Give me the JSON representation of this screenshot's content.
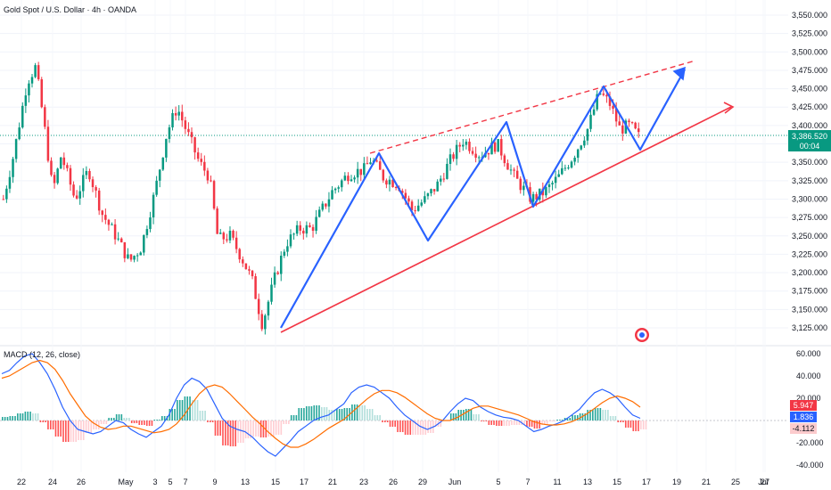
{
  "chart_data": [
    {
      "type": "candlestick",
      "title": "Gold Spot / U.S. Dollar · 4h · OANDA",
      "price_axis_ticks": [
        "3,550.000",
        "3,525.000",
        "3,500.000",
        "3,475.000",
        "3,450.000",
        "3,425.000",
        "3,400.000",
        "3,375.000",
        "3,350.000",
        "3,325.000",
        "3,300.000",
        "3,275.000",
        "3,250.000",
        "3,225.000",
        "3,200.000",
        "3,175.000",
        "3,150.000",
        "3,125.000"
      ],
      "ylim": [
        3120,
        3560
      ],
      "last_price": "3,386.520",
      "countdown": "00:04",
      "close_path": [
        {
          "x": 0,
          "y": 3300
        },
        {
          "x": 0.6,
          "y": 3360
        },
        {
          "x": 1.4,
          "y": 3460
        },
        {
          "x": 1.9,
          "y": 3480
        },
        {
          "x": 2.4,
          "y": 3400
        },
        {
          "x": 2.9,
          "y": 3310
        },
        {
          "x": 3.4,
          "y": 3360
        },
        {
          "x": 4.2,
          "y": 3300
        },
        {
          "x": 5.0,
          "y": 3340
        },
        {
          "x": 5.8,
          "y": 3280
        },
        {
          "x": 6.6,
          "y": 3250
        },
        {
          "x": 7.4,
          "y": 3215
        },
        {
          "x": 8.1,
          "y": 3235
        },
        {
          "x": 8.9,
          "y": 3310
        },
        {
          "x": 9.6,
          "y": 3390
        },
        {
          "x": 10.2,
          "y": 3425
        },
        {
          "x": 10.8,
          "y": 3390
        },
        {
          "x": 11.5,
          "y": 3350
        },
        {
          "x": 12.1,
          "y": 3330
        },
        {
          "x": 12.6,
          "y": 3245
        },
        {
          "x": 13.3,
          "y": 3250
        },
        {
          "x": 14.0,
          "y": 3220
        },
        {
          "x": 14.6,
          "y": 3190
        },
        {
          "x": 15.2,
          "y": 3130
        },
        {
          "x": 15.9,
          "y": 3190
        },
        {
          "x": 16.6,
          "y": 3240
        },
        {
          "x": 17.4,
          "y": 3260
        },
        {
          "x": 18.1,
          "y": 3260
        },
        {
          "x": 19.3,
          "y": 3310
        },
        {
          "x": 20.3,
          "y": 3335
        },
        {
          "x": 21.2,
          "y": 3340
        },
        {
          "x": 21.6,
          "y": 3355
        },
        {
          "x": 22.3,
          "y": 3330
        },
        {
          "x": 23.2,
          "y": 3320
        },
        {
          "x": 24.0,
          "y": 3285
        },
        {
          "x": 24.8,
          "y": 3300
        },
        {
          "x": 25.5,
          "y": 3320
        },
        {
          "x": 26.3,
          "y": 3355
        },
        {
          "x": 27.0,
          "y": 3380
        },
        {
          "x": 28.0,
          "y": 3360
        },
        {
          "x": 29.0,
          "y": 3375
        },
        {
          "x": 30.0,
          "y": 3330
        },
        {
          "x": 31.0,
          "y": 3300
        },
        {
          "x": 31.8,
          "y": 3310
        },
        {
          "x": 32.6,
          "y": 3330
        },
        {
          "x": 33.5,
          "y": 3360
        },
        {
          "x": 34.3,
          "y": 3395
        },
        {
          "x": 35.0,
          "y": 3445
        },
        {
          "x": 35.6,
          "y": 3430
        },
        {
          "x": 36.2,
          "y": 3395
        },
        {
          "x": 36.8,
          "y": 3400
        },
        {
          "x": 37.3,
          "y": 3385
        }
      ],
      "xaxis_ticks": [
        "22",
        "24",
        "26",
        "May",
        "3",
        "5",
        "7",
        "9",
        "13",
        "15",
        "17",
        "21",
        "23",
        "26",
        "29",
        "Jun",
        "5",
        "7",
        "11",
        "13",
        "15",
        "17",
        "19",
        "21",
        "25",
        "27",
        "Jul"
      ],
      "annotations": [
        {
          "type": "trendline-support",
          "color": "#f23645"
        },
        {
          "type": "trendline-resistance-dashed",
          "color": "#f23645"
        },
        {
          "type": "zigzag-projection",
          "color": "#2962ff"
        }
      ]
    },
    {
      "type": "macd",
      "title": "MACD (12, 26, close)",
      "yaxis_ticks": [
        "60.000",
        "40.000",
        "20.000",
        "-20.000",
        "-40.000"
      ],
      "ylim": [
        -44,
        62
      ],
      "values_badges": [
        "5.947",
        "1.836",
        "-4.112"
      ],
      "macd_line": [
        42,
        45,
        52,
        58,
        60,
        52,
        42,
        28,
        12,
        0,
        -8,
        -10,
        -12,
        -10,
        -5,
        0,
        -2,
        -8,
        -12,
        -15,
        -10,
        -5,
        5,
        20,
        32,
        38,
        35,
        28,
        15,
        2,
        -5,
        -8,
        -10,
        -15,
        -22,
        -28,
        -32,
        -25,
        -18,
        -10,
        -5,
        0,
        3,
        5,
        10,
        15,
        25,
        30,
        32,
        30,
        25,
        20,
        12,
        5,
        0,
        -5,
        -8,
        -5,
        0,
        8,
        15,
        20,
        18,
        12,
        8,
        5,
        3,
        2,
        0,
        -5,
        -10,
        -8,
        -5,
        -3,
        0,
        5,
        10,
        18,
        25,
        28,
        25,
        20,
        12,
        5,
        2
      ],
      "signal_line": [
        38,
        40,
        44,
        48,
        52,
        54,
        52,
        46,
        36,
        24,
        14,
        4,
        -2,
        -6,
        -8,
        -7,
        -5,
        -5,
        -7,
        -9,
        -11,
        -10,
        -8,
        -3,
        5,
        15,
        24,
        30,
        32,
        30,
        24,
        17,
        10,
        3,
        -3,
        -10,
        -16,
        -21,
        -24,
        -24,
        -21,
        -17,
        -12,
        -7,
        -3,
        1,
        7,
        13,
        19,
        24,
        27,
        27,
        25,
        21,
        16,
        11,
        6,
        2,
        0,
        0,
        3,
        7,
        11,
        13,
        13,
        11,
        9,
        7,
        5,
        2,
        -1,
        -3,
        -4,
        -4,
        -3,
        -1,
        2,
        6,
        11,
        16,
        20,
        22,
        20,
        17,
        12
      ]
    }
  ]
}
